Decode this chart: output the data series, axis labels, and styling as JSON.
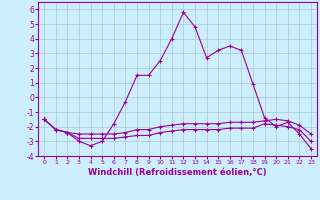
{
  "xlabel": "Windchill (Refroidissement éolien,°C)",
  "x": [
    0,
    1,
    2,
    3,
    4,
    5,
    6,
    7,
    8,
    9,
    10,
    11,
    12,
    13,
    14,
    15,
    16,
    17,
    18,
    19,
    20,
    21,
    22,
    23
  ],
  "line1": [
    -1.5,
    -2.2,
    -2.4,
    -3.0,
    -3.3,
    -3.0,
    -1.8,
    -0.3,
    1.5,
    1.5,
    2.5,
    4.0,
    5.8,
    4.8,
    2.7,
    3.2,
    3.5,
    3.2,
    0.9,
    -1.4,
    -2.0,
    -1.7,
    -2.5,
    -3.5
  ],
  "line2": [
    -1.5,
    -2.2,
    -2.4,
    -2.5,
    -2.5,
    -2.5,
    -2.5,
    -2.4,
    -2.2,
    -2.2,
    -2.0,
    -1.9,
    -1.8,
    -1.8,
    -1.8,
    -1.8,
    -1.7,
    -1.7,
    -1.7,
    -1.6,
    -1.5,
    -1.6,
    -1.9,
    -2.5
  ],
  "line3": [
    -1.5,
    -2.2,
    -2.4,
    -2.8,
    -2.8,
    -2.8,
    -2.8,
    -2.7,
    -2.6,
    -2.6,
    -2.4,
    -2.3,
    -2.2,
    -2.2,
    -2.2,
    -2.2,
    -2.1,
    -2.1,
    -2.1,
    -1.8,
    -1.9,
    -2.0,
    -2.2,
    -3.0
  ],
  "line_color": "#990099",
  "bg_color": "#cceeff",
  "grid_color": "#aacccc",
  "ylim": [
    -4,
    6.5
  ],
  "xlim": [
    -0.5,
    23.5
  ],
  "yticks": [
    -4,
    -3,
    -2,
    -1,
    0,
    1,
    2,
    3,
    4,
    5,
    6
  ]
}
